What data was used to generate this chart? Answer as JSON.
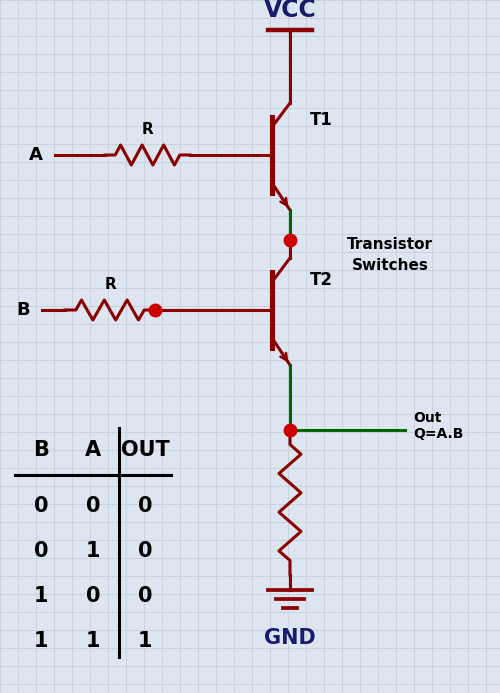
{
  "bg_color": "#dde6f0",
  "grid_color": "#c5d0dc",
  "wire_color": "#8b0000",
  "green_color": "#006400",
  "dot_color": "#cc0000",
  "text_color": "#1a1a6e",
  "label_color": "#000000",
  "vcc_label": "VCC",
  "gnd_label": "GND",
  "transistor_switches_label": "Transistor\nSwitches",
  "out_label": "Out\nQ=A.B",
  "t1_label": "T1",
  "t2_label": "T2",
  "r1_label": "R",
  "r2_label": "R",
  "a_label": "A",
  "b_label": "B",
  "truth_table": {
    "headers": [
      "B",
      "A",
      "OUT"
    ],
    "rows": [
      [
        0,
        0,
        0
      ],
      [
        0,
        1,
        0
      ],
      [
        1,
        0,
        0
      ],
      [
        1,
        1,
        1
      ]
    ]
  }
}
